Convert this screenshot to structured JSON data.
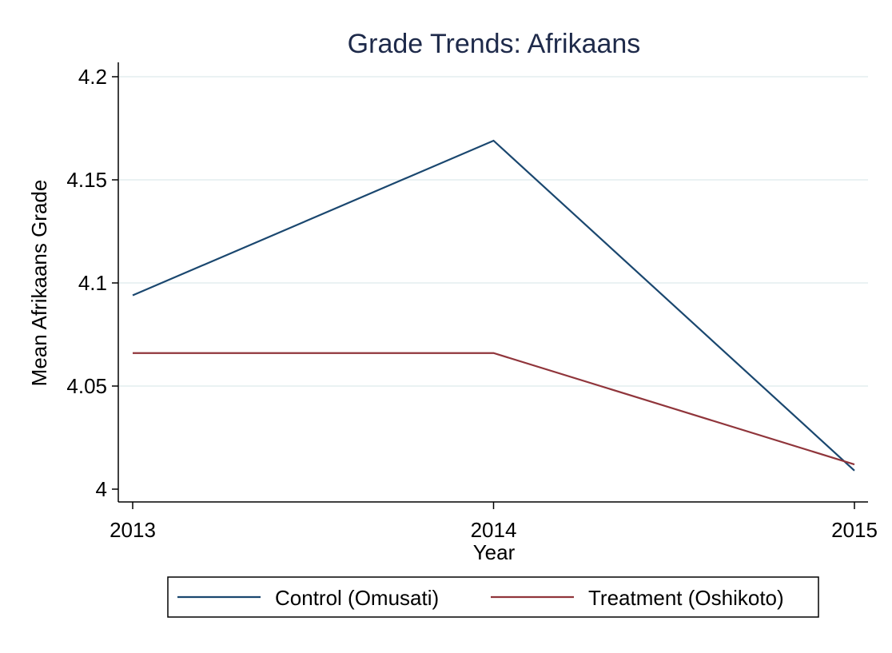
{
  "chart_data": {
    "type": "line",
    "title": "Grade Trends: Afrikaans",
    "xlabel": "Year",
    "ylabel": "Mean Afrikaans Grade",
    "x": [
      2013,
      2014,
      2015
    ],
    "x_tick_labels": [
      "2013",
      "2014",
      "2015"
    ],
    "xlim": [
      2013,
      2015
    ],
    "ylim": [
      4.0,
      4.2
    ],
    "y_ticks": [
      4.0,
      4.05,
      4.1,
      4.15,
      4.2
    ],
    "y_tick_labels": [
      "4",
      "4.05",
      "4.1",
      "4.15",
      "4.2"
    ],
    "grid": true,
    "legend_position": "bottom",
    "series": [
      {
        "name": "Control (Omusati)",
        "color": "#1a476f",
        "values": [
          4.094,
          4.169,
          4.009
        ]
      },
      {
        "name": "Treatment (Oshikoto)",
        "color": "#90353b",
        "values": [
          4.066,
          4.066,
          4.012
        ]
      }
    ],
    "colors": {
      "grid": "#eaf2f3",
      "axis": "#000000",
      "title": "#1e2a4a"
    }
  }
}
